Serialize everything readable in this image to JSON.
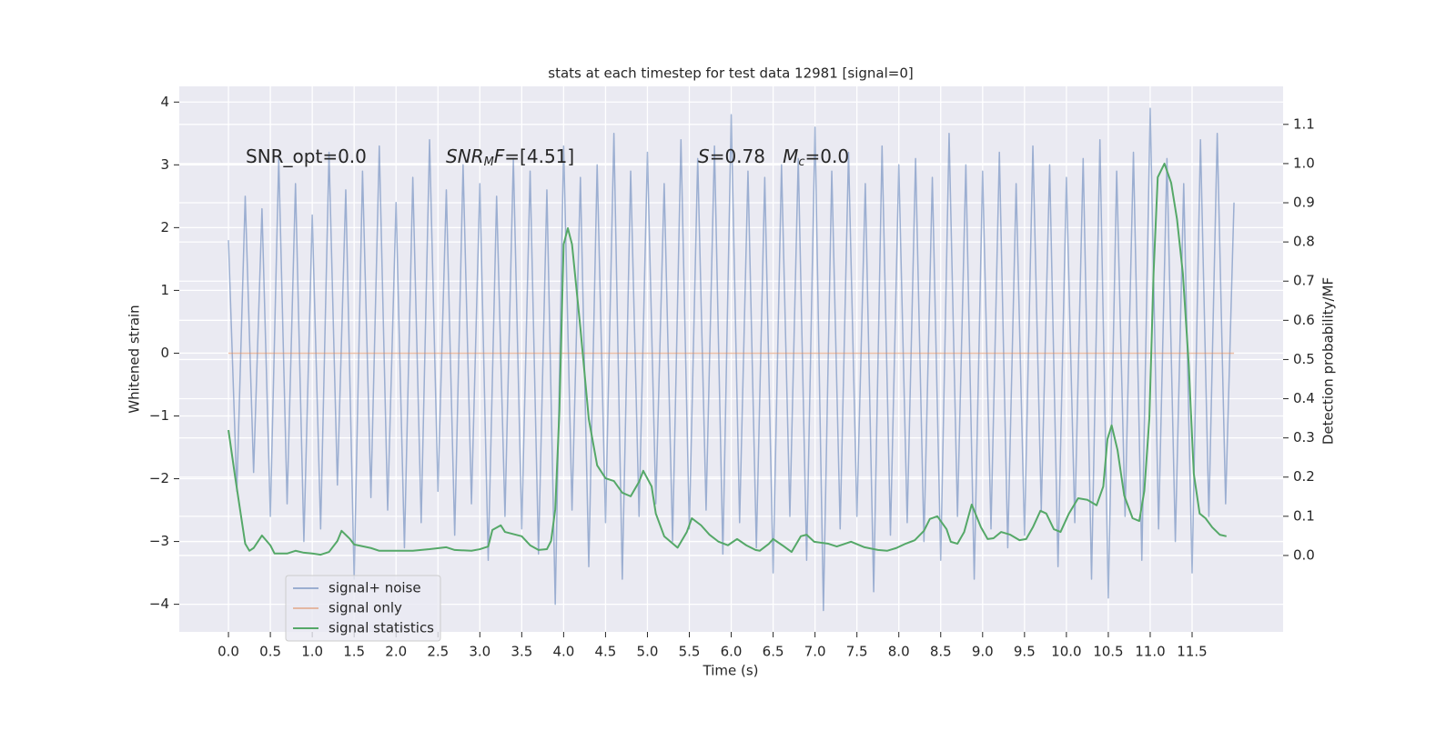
{
  "chart_data": {
    "type": "line",
    "title": "stats at each timestep for test data 12981 [signal=0]",
    "xlabel": "Time (s)",
    "ylabel": "Whitened strain",
    "y2label": "Detection probability/MF",
    "annotations": [
      [
        "SNR_opt=0.0"
      ],
      [
        "SNR",
        "M",
        "F",
        "=[4.51]"
      ],
      [
        "S",
        "=0.78   ",
        "M",
        "c",
        "=0.0"
      ]
    ],
    "xlim": [
      -0.587,
      12.586
    ],
    "ylim": [
      -4.44,
      4.25
    ],
    "y2lim": [
      -0.195,
      1.197
    ],
    "xticks": [
      {
        "value": 0,
        "label": "0.0"
      },
      0.5,
      {
        "value": 1,
        "label": "1.0"
      },
      1.5,
      {
        "value": 2,
        "label": "2.0"
      },
      2.5,
      {
        "value": 3,
        "label": "3.0"
      },
      3.5,
      {
        "value": 4,
        "label": "4.0"
      },
      4.5,
      {
        "value": 5,
        "label": "5.0"
      },
      5.5,
      {
        "value": 6,
        "label": "6.0"
      },
      6.5,
      {
        "value": 7,
        "label": "7.0"
      },
      7.5,
      {
        "value": 8,
        "label": "8.0"
      },
      8.5,
      {
        "value": 9,
        "label": "9.0"
      },
      9.5,
      {
        "value": 10,
        "label": "10.0"
      },
      10.5,
      {
        "value": 11,
        "label": "11.0"
      },
      11.5
    ],
    "yticks": [
      {
        "value": -4,
        "label": "−4"
      },
      {
        "value": -3,
        "label": "−3"
      },
      {
        "value": -2,
        "label": "−2"
      },
      {
        "value": -1,
        "label": "−1"
      },
      0,
      1,
      2,
      3,
      4
    ],
    "y2ticks": [
      {
        "value": 0,
        "label": "0.0"
      },
      0.1,
      0.2,
      0.3,
      0.4,
      0.5,
      0.6,
      0.7,
      0.8,
      0.9,
      {
        "value": 1,
        "label": "1.0"
      },
      1.1
    ],
    "grid": true,
    "legend": "lower left",
    "series": [
      {
        "name": "signal+ noise",
        "color": "#4c72b0",
        "x": [
          0,
          0.1,
          0.2,
          0.3,
          0.4,
          0.5,
          0.6,
          0.7,
          0.8,
          0.9,
          1,
          1.1,
          1.2,
          1.3,
          1.4,
          1.5,
          1.6,
          1.7,
          1.8,
          1.9,
          2,
          2.1,
          2.2,
          2.3,
          2.4,
          2.5,
          2.6,
          2.7,
          2.8,
          2.9,
          3,
          3.1,
          3.2,
          3.3,
          3.4,
          3.5,
          3.6,
          3.7,
          3.8,
          3.9,
          4,
          4.1,
          4.2,
          4.3,
          4.4,
          4.5,
          4.6,
          4.7,
          4.8,
          4.9,
          5,
          5.1,
          5.2,
          5.3,
          5.4,
          5.5,
          5.6,
          5.7,
          5.8,
          5.9,
          6,
          6.1,
          6.2,
          6.3,
          6.4,
          6.5,
          6.6,
          6.7,
          6.8,
          6.9,
          7,
          7.1,
          7.2,
          7.3,
          7.4,
          7.5,
          7.6,
          7.7,
          7.8,
          7.9,
          8,
          8.1,
          8.2,
          8.3,
          8.4,
          8.5,
          8.6,
          8.7,
          8.8,
          8.9,
          9,
          9.1,
          9.2,
          9.3,
          9.4,
          9.5,
          9.6,
          9.7,
          9.8,
          9.9,
          10,
          10.1,
          10.2,
          10.3,
          10.4,
          10.5,
          10.6,
          10.7,
          10.8,
          10.9,
          11,
          11.1,
          11.2,
          11.3,
          11.4,
          11.5,
          11.6,
          11.7,
          11.8,
          11.9,
          12
        ],
        "values": [
          1.8,
          -2.2,
          2.5,
          -1.9,
          2.3,
          -2.6,
          3.1,
          -2.4,
          2.7,
          -3.0,
          2.2,
          -2.8,
          3.2,
          -2.1,
          2.6,
          -3.6,
          2.9,
          -2.3,
          3.3,
          -2.5,
          2.4,
          -3.1,
          2.8,
          -2.7,
          3.4,
          -2.2,
          2.6,
          -2.9,
          3.0,
          -2.4,
          2.7,
          -3.3,
          2.5,
          -2.6,
          3.1,
          -2.8,
          2.9,
          -3.2,
          2.6,
          -4.0,
          3.3,
          -2.5,
          2.8,
          -3.4,
          3.0,
          -2.7,
          3.5,
          -3.6,
          2.9,
          -2.6,
          3.2,
          -2.4,
          2.7,
          -3.0,
          3.4,
          -2.8,
          3.1,
          -2.5,
          3.3,
          -3.2,
          3.8,
          -2.7,
          2.9,
          -3.1,
          2.8,
          -3.5,
          3.0,
          -2.6,
          3.1,
          -3.3,
          3.6,
          -4.1,
          2.9,
          -2.8,
          3.2,
          -2.6,
          2.7,
          -3.8,
          3.3,
          -2.9,
          3.0,
          -2.7,
          3.1,
          -3.0,
          2.8,
          -3.3,
          3.5,
          -2.6,
          3.0,
          -3.6,
          2.9,
          -2.8,
          3.2,
          -3.1,
          2.7,
          -2.9,
          3.3,
          -2.5,
          3.0,
          -3.4,
          2.8,
          -2.7,
          3.1,
          -3.6,
          3.4,
          -3.9,
          2.9,
          -2.6,
          3.2,
          -3.3,
          3.9,
          -2.8,
          3.1,
          -3.0,
          2.7,
          -3.5,
          3.4,
          -2.6,
          3.5,
          -2.4,
          2.4
        ]
      },
      {
        "name": "signal only",
        "color": "#dd8452",
        "x": [
          0,
          12
        ],
        "values": [
          0,
          0
        ]
      },
      {
        "name": "signal statistics",
        "color": "#55a868",
        "axis": "y2",
        "x": [
          0,
          0.08,
          0.2,
          0.25,
          0.3,
          0.4,
          0.5,
          0.55,
          0.7,
          0.8,
          0.9,
          1.0,
          1.1,
          1.2,
          1.3,
          1.35,
          1.45,
          1.5,
          1.7,
          1.8,
          2.0,
          2.2,
          2.4,
          2.6,
          2.7,
          2.9,
          3.0,
          3.1,
          3.15,
          3.25,
          3.3,
          3.5,
          3.6,
          3.7,
          3.8,
          3.85,
          3.9,
          3.95,
          4.0,
          4.05,
          4.1,
          4.2,
          4.3,
          4.4,
          4.5,
          4.6,
          4.7,
          4.8,
          4.9,
          4.95,
          5.05,
          5.1,
          5.2,
          5.36,
          5.47,
          5.53,
          5.64,
          5.74,
          5.85,
          5.96,
          6.07,
          6.18,
          6.29,
          6.34,
          6.45,
          6.5,
          6.61,
          6.72,
          6.83,
          6.9,
          6.99,
          7.16,
          7.26,
          7.43,
          7.59,
          7.75,
          7.86,
          7.97,
          8.08,
          8.19,
          8.3,
          8.37,
          8.46,
          8.57,
          8.62,
          8.7,
          8.78,
          8.87,
          8.98,
          9.06,
          9.13,
          9.22,
          9.33,
          9.44,
          9.52,
          9.6,
          9.69,
          9.76,
          9.85,
          9.93,
          10.03,
          10.14,
          10.25,
          10.36,
          10.44,
          10.49,
          10.54,
          10.61,
          10.69,
          10.79,
          10.87,
          10.93,
          10.99,
          11.04,
          11.09,
          11.17,
          11.25,
          11.32,
          11.39,
          11.46,
          11.52,
          11.59,
          11.66,
          11.74,
          11.83,
          11.91
        ],
        "values": [
          0.32,
          0.2,
          0.03,
          0.012,
          0.019,
          0.051,
          0.026,
          0.005,
          0.005,
          0.012,
          0.007,
          0.005,
          0.002,
          0.009,
          0.037,
          0.063,
          0.042,
          0.028,
          0.019,
          0.012,
          0.012,
          0.012,
          0.016,
          0.021,
          0.014,
          0.012,
          0.016,
          0.023,
          0.065,
          0.077,
          0.06,
          0.049,
          0.026,
          0.014,
          0.016,
          0.037,
          0.118,
          0.371,
          0.794,
          0.835,
          0.794,
          0.58,
          0.348,
          0.23,
          0.197,
          0.19,
          0.16,
          0.151,
          0.188,
          0.216,
          0.176,
          0.107,
          0.049,
          0.02,
          0.06,
          0.095,
          0.077,
          0.053,
          0.035,
          0.026,
          0.042,
          0.026,
          0.014,
          0.012,
          0.03,
          0.042,
          0.026,
          0.009,
          0.049,
          0.053,
          0.035,
          0.03,
          0.023,
          0.035,
          0.021,
          0.014,
          0.012,
          0.019,
          0.03,
          0.039,
          0.063,
          0.093,
          0.1,
          0.067,
          0.035,
          0.03,
          0.06,
          0.13,
          0.072,
          0.042,
          0.044,
          0.06,
          0.053,
          0.039,
          0.042,
          0.072,
          0.114,
          0.107,
          0.067,
          0.06,
          0.107,
          0.146,
          0.142,
          0.128,
          0.176,
          0.297,
          0.332,
          0.269,
          0.153,
          0.095,
          0.088,
          0.165,
          0.35,
          0.719,
          0.965,
          1.0,
          0.951,
          0.858,
          0.719,
          0.487,
          0.209,
          0.107,
          0.095,
          0.072,
          0.053,
          0.049
        ]
      }
    ]
  }
}
